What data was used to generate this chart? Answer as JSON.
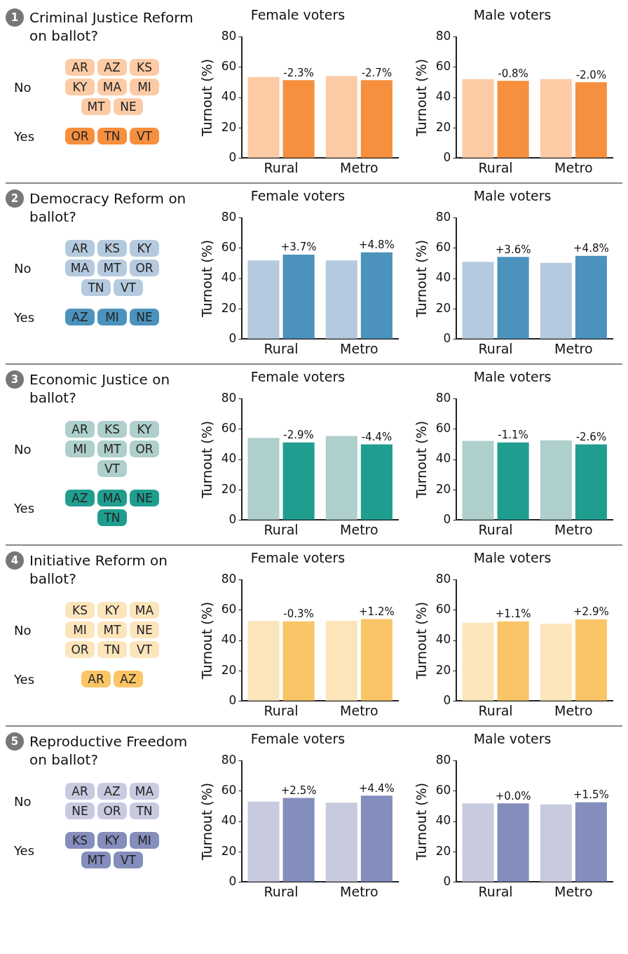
{
  "chart_data": [
    {
      "type": "other",
      "title": "Criminal Justice Reform on ballot?",
      "annotations": [
        "1"
      ],
      "categories": [
        "No",
        "Yes"
      ],
      "colors": [
        "#fccba5",
        "#f68f3e"
      ],
      "cell_labels": [
        [
          "AR",
          "AZ",
          "KS",
          "KY",
          "MA",
          "MI",
          "MT",
          "NE"
        ],
        [
          "OR",
          "TN",
          "VT"
        ]
      ]
    },
    {
      "type": "bar",
      "title": "Female voters",
      "ylabel": "Turnout (%)",
      "categories": [
        "Rural",
        "Metro"
      ],
      "ylim": [
        0,
        80
      ],
      "yticks": [
        0,
        20,
        40,
        60,
        80
      ],
      "grid": false,
      "legend": false,
      "series": [
        {
          "color": "#fccba5",
          "values": [
            53.6,
            54.2
          ]
        },
        {
          "color": "#f68f3e",
          "values": [
            51.5,
            51.5
          ]
        }
      ],
      "annotations": [
        {
          "text": "-2.3%",
          "x": "Rural",
          "y": 51.5
        },
        {
          "text": "-2.7%",
          "x": "Metro",
          "y": 51.5
        }
      ]
    },
    {
      "type": "bar",
      "title": "Male voters",
      "ylabel": "Turnout (%)",
      "categories": [
        "Rural",
        "Metro"
      ],
      "ylim": [
        0,
        80
      ],
      "yticks": [
        0,
        20,
        40,
        60,
        80
      ],
      "grid": false,
      "legend": false,
      "series": [
        {
          "color": "#fccba5",
          "values": [
            52.2,
            52.2
          ]
        },
        {
          "color": "#f68f3e",
          "values": [
            51.0,
            50.1
          ]
        }
      ],
      "annotations": [
        {
          "text": "-0.8%",
          "x": "Rural",
          "y": 51.0
        },
        {
          "text": "-2.0%",
          "x": "Metro",
          "y": 50.1
        }
      ]
    },
    {
      "type": "other",
      "title": "Democracy Reform on ballot?",
      "annotations": [
        "2"
      ],
      "categories": [
        "No",
        "Yes"
      ],
      "colors": [
        "#b5cadf",
        "#4b92bd"
      ],
      "cell_labels": [
        [
          "AR",
          "KS",
          "KY",
          "MA",
          "MT",
          "OR",
          "TN",
          "VT"
        ],
        [
          "AZ",
          "MI",
          "NE"
        ]
      ]
    },
    {
      "type": "bar",
      "title": "Female voters",
      "ylabel": "Turnout (%)",
      "categories": [
        "Rural",
        "Metro"
      ],
      "ylim": [
        0,
        80
      ],
      "yticks": [
        0,
        20,
        40,
        60,
        80
      ],
      "grid": false,
      "legend": false,
      "series": [
        {
          "color": "#b5cadf",
          "values": [
            52.0,
            52.0
          ]
        },
        {
          "color": "#4b92bd",
          "values": [
            55.8,
            57.3
          ]
        }
      ],
      "annotations": [
        {
          "text": "+3.7%",
          "x": "Rural",
          "y": 55.8
        },
        {
          "text": "+4.8%",
          "x": "Metro",
          "y": 57.3
        }
      ]
    },
    {
      "type": "bar",
      "title": "Male voters",
      "ylabel": "Turnout (%)",
      "categories": [
        "Rural",
        "Metro"
      ],
      "ylim": [
        0,
        80
      ],
      "yticks": [
        0,
        20,
        40,
        60,
        80
      ],
      "grid": false,
      "legend": false,
      "series": [
        {
          "color": "#b5cadf",
          "values": [
            51.0,
            50.3
          ]
        },
        {
          "color": "#4b92bd",
          "values": [
            54.3,
            55.0
          ]
        }
      ],
      "annotations": [
        {
          "text": "+3.6%",
          "x": "Rural",
          "y": 54.3
        },
        {
          "text": "+4.8%",
          "x": "Metro",
          "y": 55.0
        }
      ]
    },
    {
      "type": "other",
      "title": "Economic Justice on ballot?",
      "annotations": [
        "3"
      ],
      "categories": [
        "No",
        "Yes"
      ],
      "colors": [
        "#aecfcb",
        "#1f9e8f"
      ],
      "cell_labels": [
        [
          "AR",
          "KS",
          "KY",
          "MI",
          "MT",
          "OR",
          "VT"
        ],
        [
          "AZ",
          "MA",
          "NE",
          "TN"
        ]
      ]
    },
    {
      "type": "bar",
      "title": "Female voters",
      "ylabel": "Turnout (%)",
      "categories": [
        "Rural",
        "Metro"
      ],
      "ylim": [
        0,
        80
      ],
      "yticks": [
        0,
        20,
        40,
        60,
        80
      ],
      "grid": false,
      "legend": false,
      "series": [
        {
          "color": "#aecfcb",
          "values": [
            54.3,
            55.5
          ]
        },
        {
          "color": "#1f9e8f",
          "values": [
            51.2,
            50.0
          ]
        }
      ],
      "annotations": [
        {
          "text": "-2.9%",
          "x": "Rural",
          "y": 51.2
        },
        {
          "text": "-4.4%",
          "x": "Metro",
          "y": 50.0
        }
      ]
    },
    {
      "type": "bar",
      "title": "Male voters",
      "ylabel": "Turnout (%)",
      "categories": [
        "Rural",
        "Metro"
      ],
      "ylim": [
        0,
        80
      ],
      "yticks": [
        0,
        20,
        40,
        60,
        80
      ],
      "grid": false,
      "legend": false,
      "series": [
        {
          "color": "#aecfcb",
          "values": [
            52.3,
            52.7
          ]
        },
        {
          "color": "#1f9e8f",
          "values": [
            51.2,
            50.0
          ]
        }
      ],
      "annotations": [
        {
          "text": "-1.1%",
          "x": "Rural",
          "y": 51.2
        },
        {
          "text": "-2.6%",
          "x": "Metro",
          "y": 50.0
        }
      ]
    },
    {
      "type": "other",
      "title": "Initiative Reform on ballot?",
      "annotations": [
        "4"
      ],
      "categories": [
        "No",
        "Yes"
      ],
      "colors": [
        "#fce5bb",
        "#f9c566"
      ],
      "cell_labels": [
        [
          "KS",
          "KY",
          "MA",
          "MI",
          "MT",
          "NE",
          "OR",
          "TN",
          "VT"
        ],
        [
          "AR",
          "AZ"
        ]
      ]
    },
    {
      "type": "bar",
      "title": "Female voters",
      "ylabel": "Turnout (%)",
      "categories": [
        "Rural",
        "Metro"
      ],
      "ylim": [
        0,
        80
      ],
      "yticks": [
        0,
        20,
        40,
        60,
        80
      ],
      "grid": false,
      "legend": false,
      "series": [
        {
          "color": "#fce5bb",
          "values": [
            52.9,
            53.0
          ]
        },
        {
          "color": "#f9c566",
          "values": [
            52.7,
            54.2
          ]
        }
      ],
      "annotations": [
        {
          "text": "-0.3%",
          "x": "Rural",
          "y": 52.7
        },
        {
          "text": "+1.2%",
          "x": "Metro",
          "y": 54.2
        }
      ]
    },
    {
      "type": "bar",
      "title": "Male voters",
      "ylabel": "Turnout (%)",
      "categories": [
        "Rural",
        "Metro"
      ],
      "ylim": [
        0,
        80
      ],
      "yticks": [
        0,
        20,
        40,
        60,
        80
      ],
      "grid": false,
      "legend": false,
      "series": [
        {
          "color": "#fce5bb",
          "values": [
            51.7,
            51.0
          ]
        },
        {
          "color": "#f9c566",
          "values": [
            52.5,
            53.9
          ]
        }
      ],
      "annotations": [
        {
          "text": "+1.1%",
          "x": "Rural",
          "y": 52.5
        },
        {
          "text": "+2.9%",
          "x": "Metro",
          "y": 53.9
        }
      ]
    },
    {
      "type": "other",
      "title": "Reproductive Freedom on ballot?",
      "annotations": [
        "5"
      ],
      "categories": [
        "No",
        "Yes"
      ],
      "colors": [
        "#c8cae0",
        "#838ebd"
      ],
      "cell_labels": [
        [
          "AR",
          "AZ",
          "MA",
          "NE",
          "OR",
          "TN"
        ],
        [
          "KS",
          "KY",
          "MI",
          "MT",
          "VT"
        ]
      ]
    },
    {
      "type": "bar",
      "title": "Female voters",
      "ylabel": "Turnout (%)",
      "categories": [
        "Rural",
        "Metro"
      ],
      "ylim": [
        0,
        80
      ],
      "yticks": [
        0,
        20,
        40,
        60,
        80
      ],
      "grid": false,
      "legend": false,
      "series": [
        {
          "color": "#c8cae0",
          "values": [
            53.1,
            52.4
          ]
        },
        {
          "color": "#838ebd",
          "values": [
            55.6,
            57.0
          ]
        }
      ],
      "annotations": [
        {
          "text": "+2.5%",
          "x": "Rural",
          "y": 55.6
        },
        {
          "text": "+4.4%",
          "x": "Metro",
          "y": 57.0
        }
      ]
    },
    {
      "type": "bar",
      "title": "Male voters",
      "ylabel": "Turnout (%)",
      "categories": [
        "Rural",
        "Metro"
      ],
      "ylim": [
        0,
        80
      ],
      "yticks": [
        0,
        20,
        40,
        60,
        80
      ],
      "grid": false,
      "legend": false,
      "series": [
        {
          "color": "#c8cae0",
          "values": [
            51.9,
            51.2
          ]
        },
        {
          "color": "#838ebd",
          "values": [
            51.9,
            52.6
          ]
        }
      ],
      "annotations": [
        {
          "text": "+0.0%",
          "x": "Rural",
          "y": 51.9
        },
        {
          "text": "+1.5%",
          "x": "Metro",
          "y": 52.6
        }
      ]
    }
  ]
}
